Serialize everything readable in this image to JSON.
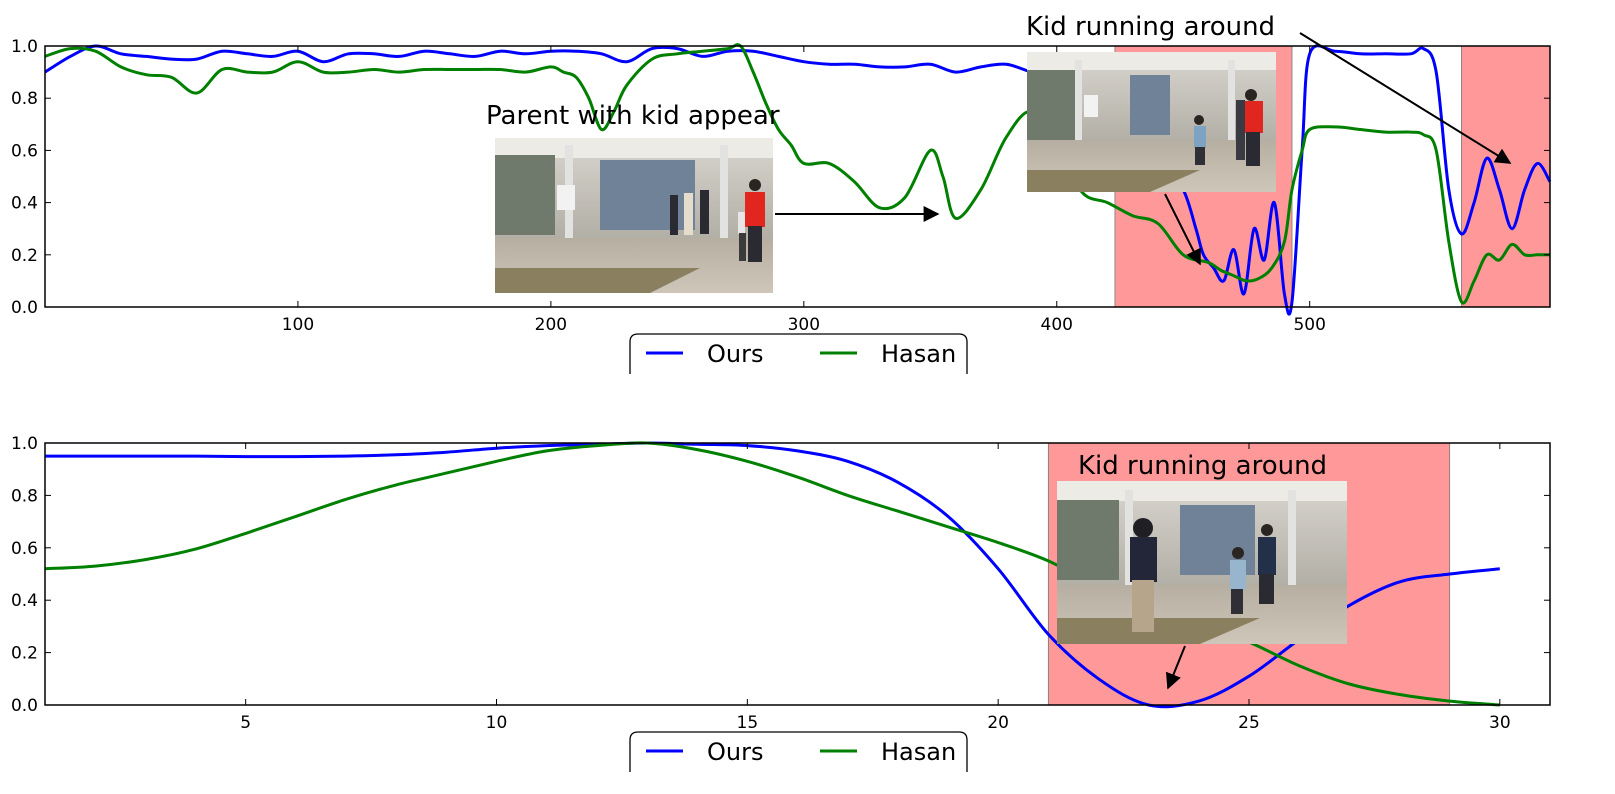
{
  "chart_data": [
    {
      "type": "line",
      "x_ticks": [
        100,
        200,
        300,
        400,
        500
      ],
      "xlim": [
        0,
        595
      ],
      "ylim": [
        0.0,
        1.0
      ],
      "y_ticks": [
        "0.0",
        "0.2",
        "0.4",
        "0.6",
        "0.8",
        "1.0"
      ],
      "highlight_regions": [
        [
          423,
          493
        ],
        [
          560,
          595
        ]
      ],
      "annotations": [
        {
          "text": "Parent with kid appear",
          "arrow_to": [
            353,
            0.35
          ]
        },
        {
          "text": "Kid running around",
          "arrow_to": [
            459,
            0.16
          ]
        },
        {
          "text": "Kid running around",
          "arrow_to": [
            578,
            0.55
          ]
        }
      ],
      "series": [
        {
          "name": "Ours",
          "color": "#0000ff",
          "x": [
            0,
            10,
            20,
            30,
            40,
            50,
            60,
            70,
            80,
            90,
            100,
            110,
            120,
            130,
            140,
            150,
            160,
            170,
            180,
            190,
            200,
            210,
            220,
            230,
            240,
            250,
            260,
            270,
            280,
            290,
            300,
            310,
            320,
            330,
            340,
            350,
            360,
            370,
            380,
            390,
            400,
            410,
            420,
            430,
            440,
            450,
            455,
            458,
            462,
            466,
            470,
            474,
            478,
            482,
            486,
            490,
            493,
            497,
            500,
            510,
            520,
            530,
            540,
            545,
            550,
            555,
            560,
            565,
            570,
            575,
            580,
            585,
            590,
            595
          ],
          "y": [
            0.9,
            0.96,
            1.0,
            0.97,
            0.96,
            0.95,
            0.95,
            0.98,
            0.97,
            0.96,
            0.98,
            0.94,
            0.97,
            0.97,
            0.96,
            0.98,
            0.97,
            0.96,
            0.98,
            0.97,
            0.98,
            0.98,
            0.97,
            0.94,
            0.99,
            0.99,
            0.96,
            0.98,
            0.98,
            0.96,
            0.94,
            0.93,
            0.93,
            0.92,
            0.92,
            0.93,
            0.9,
            0.92,
            0.93,
            0.9,
            0.88,
            0.86,
            0.82,
            0.7,
            0.6,
            0.45,
            0.3,
            0.2,
            0.15,
            0.1,
            0.22,
            0.05,
            0.3,
            0.18,
            0.4,
            0.05,
            0.02,
            0.6,
            0.97,
            0.98,
            0.97,
            0.97,
            0.97,
            0.99,
            0.9,
            0.45,
            0.28,
            0.4,
            0.57,
            0.45,
            0.3,
            0.45,
            0.55,
            0.48
          ]
        },
        {
          "name": "Hasan",
          "color": "#008000",
          "x": [
            0,
            10,
            20,
            30,
            40,
            50,
            60,
            70,
            80,
            90,
            100,
            110,
            120,
            130,
            140,
            150,
            160,
            170,
            180,
            190,
            200,
            205,
            210,
            215,
            220,
            225,
            230,
            240,
            250,
            260,
            270,
            275,
            280,
            285,
            290,
            295,
            300,
            310,
            320,
            330,
            340,
            350,
            355,
            360,
            370,
            380,
            390,
            400,
            410,
            420,
            430,
            440,
            450,
            460,
            465,
            470,
            475,
            480,
            485,
            490,
            493,
            497,
            500,
            510,
            520,
            530,
            540,
            545,
            550,
            555,
            560,
            565,
            570,
            575,
            580,
            585,
            590,
            595
          ],
          "y": [
            0.96,
            0.99,
            0.98,
            0.92,
            0.89,
            0.88,
            0.82,
            0.91,
            0.9,
            0.9,
            0.94,
            0.9,
            0.9,
            0.91,
            0.9,
            0.91,
            0.91,
            0.91,
            0.91,
            0.9,
            0.92,
            0.9,
            0.88,
            0.8,
            0.68,
            0.75,
            0.85,
            0.95,
            0.97,
            0.98,
            0.99,
            1.0,
            0.9,
            0.78,
            0.68,
            0.62,
            0.55,
            0.55,
            0.48,
            0.38,
            0.42,
            0.6,
            0.5,
            0.34,
            0.45,
            0.65,
            0.75,
            0.62,
            0.44,
            0.4,
            0.35,
            0.32,
            0.2,
            0.17,
            0.14,
            0.12,
            0.1,
            0.11,
            0.15,
            0.25,
            0.45,
            0.6,
            0.68,
            0.69,
            0.68,
            0.67,
            0.67,
            0.66,
            0.6,
            0.25,
            0.02,
            0.1,
            0.2,
            0.18,
            0.24,
            0.2,
            0.2,
            0.2
          ]
        }
      ],
      "legend": {
        "placement": "bottom-center",
        "entries": [
          "Ours",
          "Hasan"
        ]
      }
    },
    {
      "type": "line",
      "x_ticks": [
        5,
        10,
        15,
        20,
        25,
        30
      ],
      "xlim": [
        1,
        31
      ],
      "ylim": [
        0.0,
        1.0
      ],
      "y_ticks": [
        "0.0",
        "0.2",
        "0.4",
        "0.6",
        "0.8",
        "1.0"
      ],
      "highlight_regions": [
        [
          21,
          29
        ]
      ],
      "annotations": [
        {
          "text": "Kid running around",
          "arrow_to": [
            23.3,
            0.06
          ]
        }
      ],
      "series": [
        {
          "name": "Ours",
          "color": "#0000ff",
          "x": [
            1,
            2,
            3,
            4,
            5,
            6,
            7,
            8,
            9,
            10,
            11,
            12,
            13,
            14,
            15,
            16,
            17,
            18,
            19,
            20,
            21,
            22,
            23,
            24,
            25,
            26,
            27,
            28,
            29,
            30
          ],
          "y": [
            0.95,
            0.95,
            0.95,
            0.95,
            0.948,
            0.948,
            0.95,
            0.955,
            0.965,
            0.98,
            0.99,
            0.995,
            1.0,
            0.995,
            0.99,
            0.97,
            0.93,
            0.85,
            0.72,
            0.52,
            0.27,
            0.1,
            0.0,
            0.015,
            0.11,
            0.25,
            0.38,
            0.47,
            0.5,
            0.52
          ]
        },
        {
          "name": "Hasan",
          "color": "#008000",
          "x": [
            1,
            2,
            3,
            4,
            5,
            6,
            7,
            8,
            9,
            10,
            11,
            12,
            13,
            14,
            15,
            16,
            17,
            18,
            19,
            20,
            21,
            22,
            23,
            24,
            25,
            26,
            27,
            28,
            29,
            30
          ],
          "y": [
            0.52,
            0.53,
            0.555,
            0.595,
            0.655,
            0.72,
            0.785,
            0.84,
            0.885,
            0.93,
            0.97,
            0.99,
            1.0,
            0.975,
            0.93,
            0.87,
            0.8,
            0.74,
            0.68,
            0.62,
            0.55,
            0.45,
            0.38,
            0.31,
            0.24,
            0.15,
            0.08,
            0.04,
            0.015,
            0.0
          ]
        }
      ],
      "legend": {
        "placement": "bottom-center",
        "entries": [
          "Ours",
          "Hasan"
        ]
      }
    }
  ],
  "style": {
    "highlight_color": "#ff9999",
    "axis_color": "#000000"
  }
}
